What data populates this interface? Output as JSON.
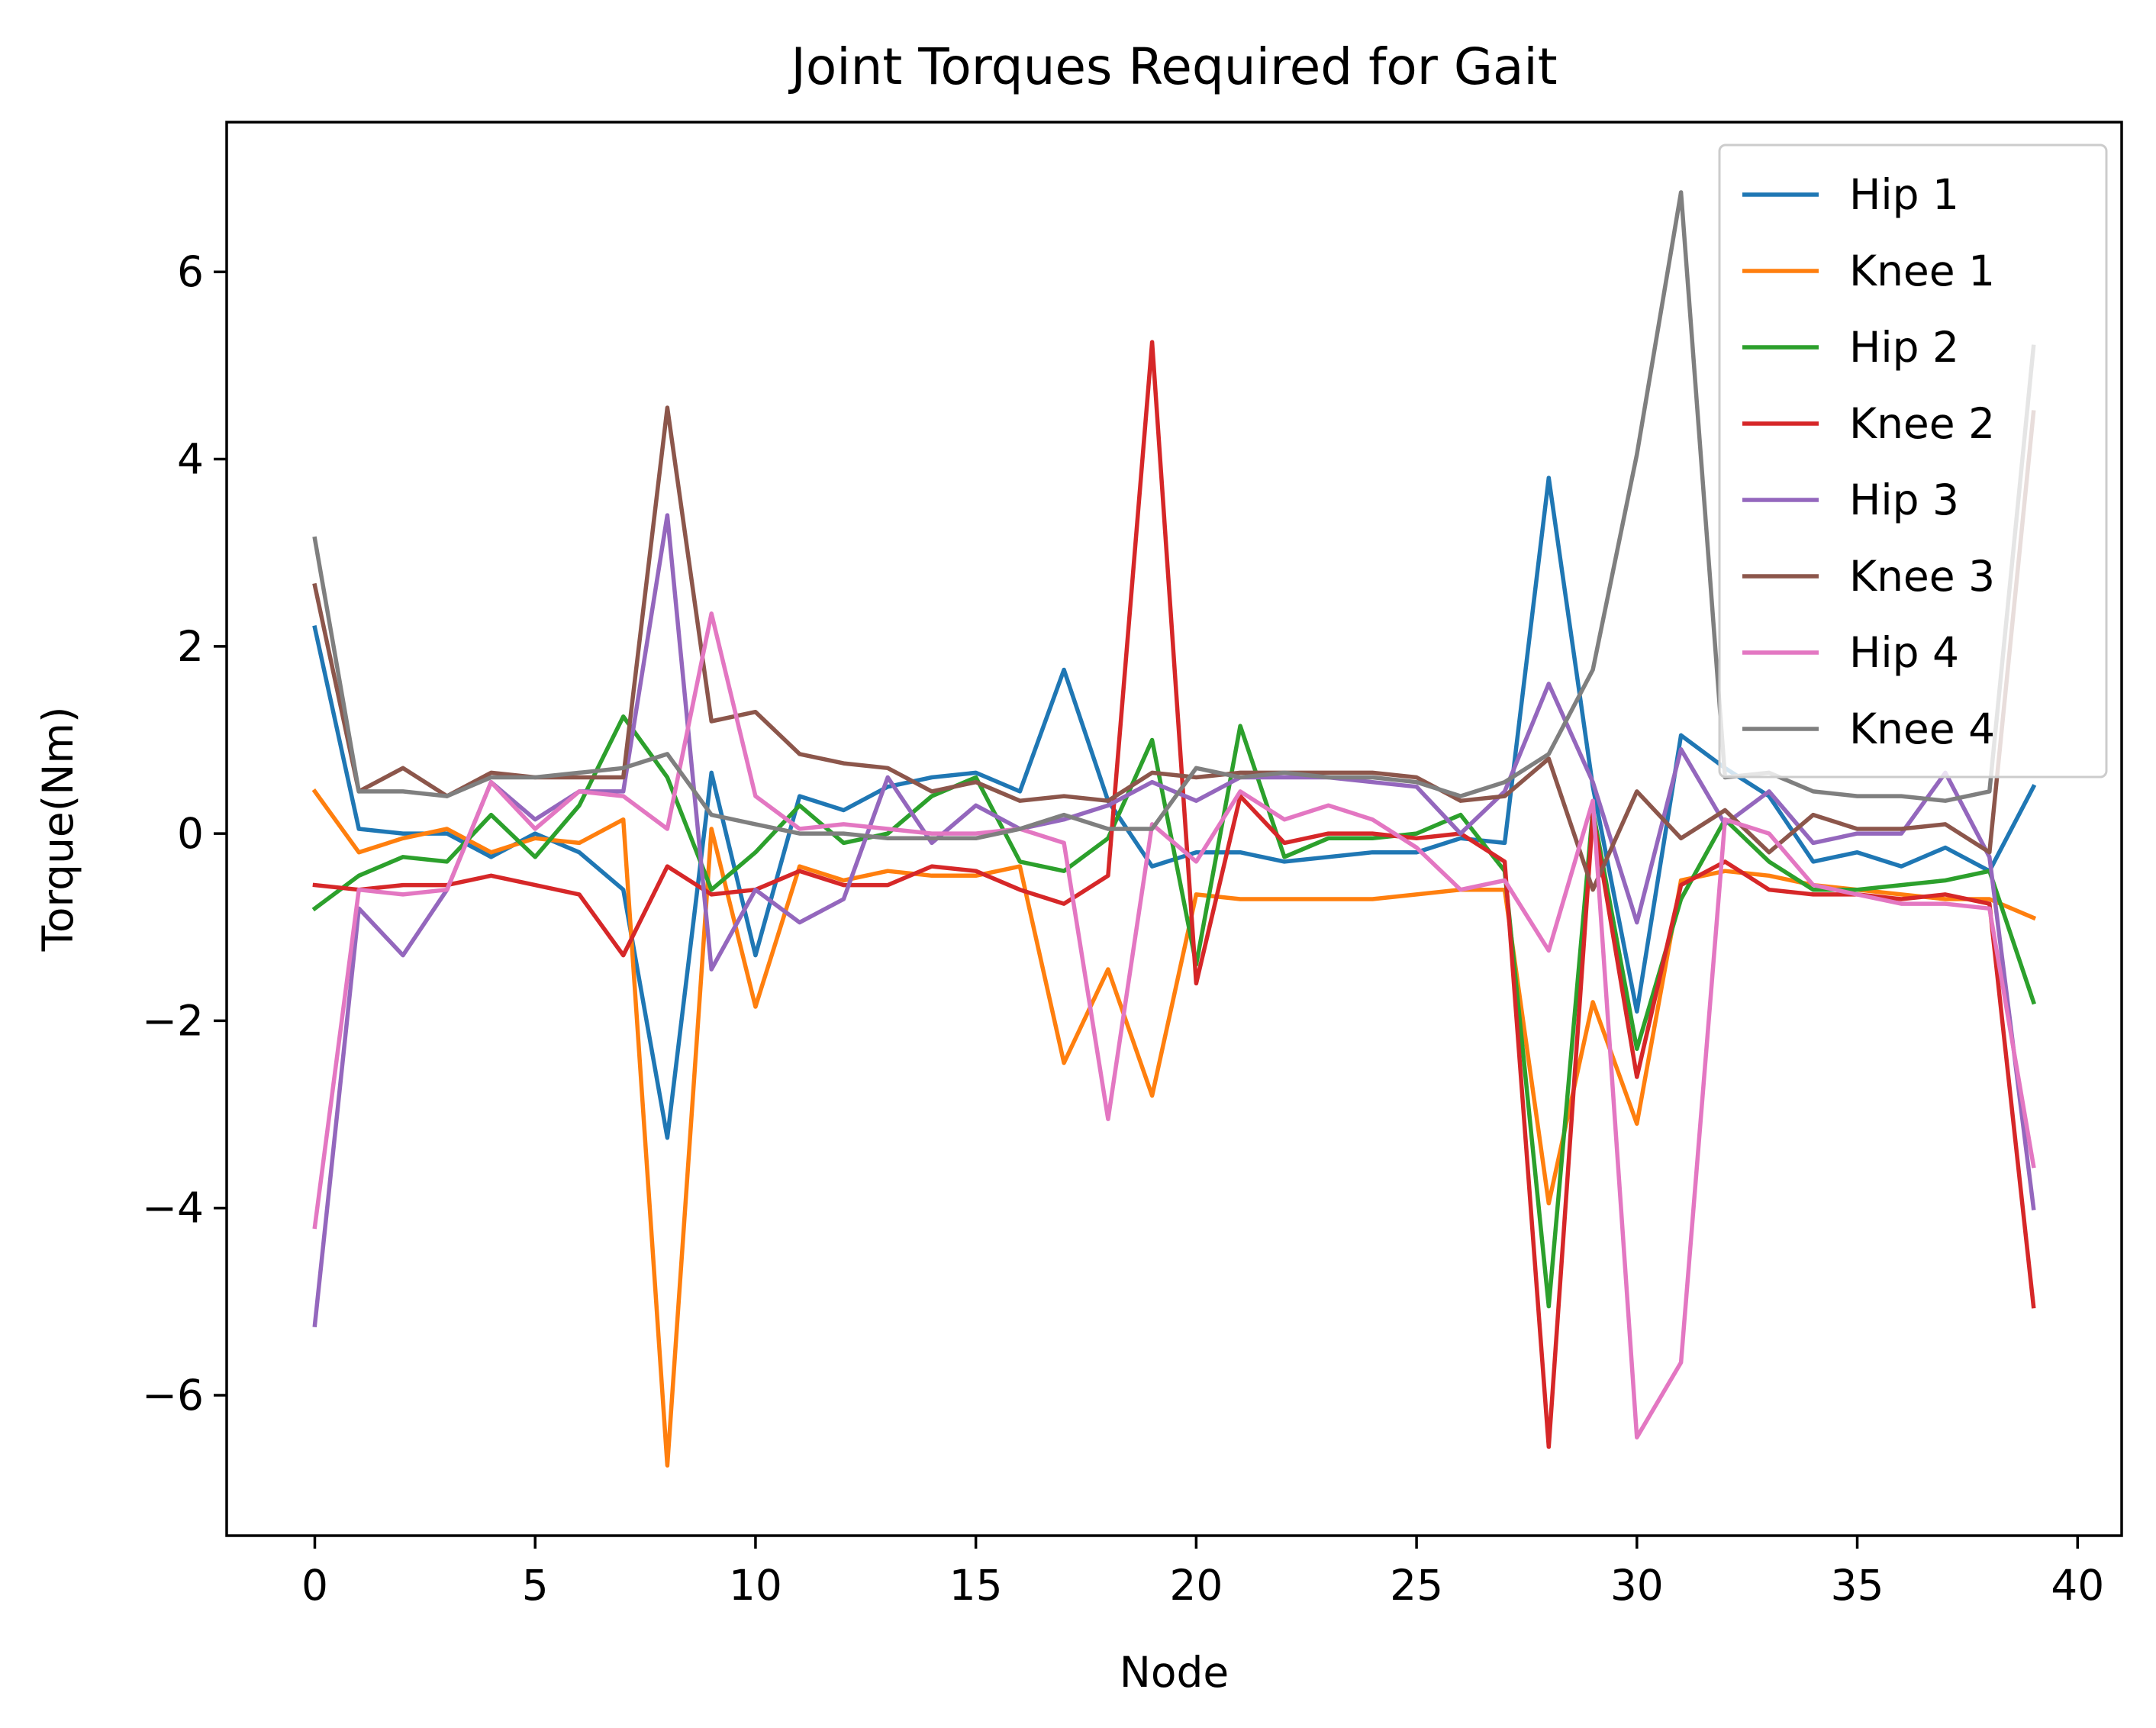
{
  "chart_data": {
    "type": "line",
    "title": "Joint Torques Required for Gait",
    "xlabel": "Node",
    "ylabel": "Torque(Nm)",
    "xlim": [
      -2,
      41
    ],
    "ylim": [
      -7.5,
      7.6
    ],
    "xticks": [
      0,
      5,
      10,
      15,
      20,
      25,
      30,
      35,
      40
    ],
    "yticks": [
      -6,
      -4,
      -2,
      0,
      2,
      4,
      6
    ],
    "grid": false,
    "legend_position": "upper right",
    "x": [
      0,
      1,
      2,
      3,
      4,
      5,
      6,
      7,
      8,
      9,
      10,
      11,
      12,
      13,
      14,
      15,
      16,
      17,
      18,
      19,
      20,
      21,
      22,
      23,
      24,
      25,
      26,
      27,
      28,
      29,
      30,
      31,
      32,
      33,
      34,
      35,
      36,
      37,
      38,
      39
    ],
    "series": [
      {
        "name": "Hip 1",
        "color": "#1f77b4",
        "values": [
          2.2,
          0.05,
          0.0,
          0.0,
          -0.25,
          0.0,
          -0.2,
          -0.6,
          -3.25,
          0.65,
          -1.3,
          0.4,
          0.25,
          0.5,
          0.6,
          0.65,
          0.45,
          1.75,
          0.35,
          -0.35,
          -0.2,
          -0.2,
          -0.3,
          -0.25,
          -0.2,
          -0.2,
          -0.05,
          -0.1,
          3.8,
          0.5,
          -1.9,
          1.05,
          0.7,
          0.4,
          -0.3,
          -0.2,
          -0.35,
          -0.15,
          -0.4,
          0.5
        ]
      },
      {
        "name": "Knee 1",
        "color": "#ff7f0e",
        "values": [
          0.45,
          -0.2,
          -0.05,
          0.05,
          -0.2,
          -0.05,
          -0.1,
          0.15,
          -6.75,
          0.05,
          -1.85,
          -0.35,
          -0.5,
          -0.4,
          -0.45,
          -0.45,
          -0.35,
          -2.45,
          -1.45,
          -2.8,
          -0.65,
          -0.7,
          -0.7,
          -0.7,
          -0.7,
          -0.65,
          -0.6,
          -0.6,
          -3.95,
          -1.8,
          -3.1,
          -0.5,
          -0.4,
          -0.45,
          -0.55,
          -0.6,
          -0.65,
          -0.7,
          -0.7,
          -0.9
        ]
      },
      {
        "name": "Hip 2",
        "color": "#2ca02c",
        "values": [
          -0.8,
          -0.45,
          -0.25,
          -0.3,
          0.2,
          -0.25,
          0.3,
          1.25,
          0.6,
          -0.6,
          -0.2,
          0.3,
          -0.1,
          0.0,
          0.4,
          0.6,
          -0.3,
          -0.4,
          -0.05,
          1.0,
          -1.4,
          1.15,
          -0.25,
          -0.05,
          -0.05,
          0.0,
          0.2,
          -0.4,
          -5.05,
          0.25,
          -2.3,
          -0.7,
          0.15,
          -0.3,
          -0.6,
          -0.6,
          -0.55,
          -0.5,
          -0.4,
          -1.8
        ]
      },
      {
        "name": "Knee 2",
        "color": "#d62728",
        "values": [
          -0.55,
          -0.6,
          -0.55,
          -0.55,
          -0.45,
          -0.55,
          -0.65,
          -1.3,
          -0.35,
          -0.65,
          -0.6,
          -0.4,
          -0.55,
          -0.55,
          -0.35,
          -0.4,
          -0.6,
          -0.75,
          -0.45,
          5.25,
          -1.6,
          0.4,
          -0.1,
          0.0,
          0.0,
          -0.05,
          0.0,
          -0.3,
          -6.55,
          0.2,
          -2.6,
          -0.55,
          -0.3,
          -0.6,
          -0.65,
          -0.65,
          -0.7,
          -0.65,
          -0.75,
          -5.05
        ]
      },
      {
        "name": "Hip 3",
        "color": "#9467bd",
        "values": [
          -5.25,
          -0.8,
          -1.3,
          -0.6,
          0.55,
          0.15,
          0.45,
          0.45,
          3.4,
          -1.45,
          -0.6,
          -0.95,
          -0.7,
          0.6,
          -0.1,
          0.3,
          0.05,
          0.15,
          0.3,
          0.55,
          0.35,
          0.6,
          0.6,
          0.6,
          0.55,
          0.5,
          0.0,
          0.45,
          1.6,
          0.55,
          -0.95,
          0.9,
          0.1,
          0.45,
          -0.1,
          0.0,
          0.0,
          0.65,
          -0.25,
          -4.0
        ]
      },
      {
        "name": "Knee 3",
        "color": "#8c564b",
        "values": [
          2.65,
          0.45,
          0.7,
          0.4,
          0.65,
          0.6,
          0.6,
          0.6,
          4.55,
          1.2,
          1.3,
          0.85,
          0.75,
          0.7,
          0.45,
          0.55,
          0.35,
          0.4,
          0.35,
          0.65,
          0.6,
          0.65,
          0.65,
          0.65,
          0.65,
          0.6,
          0.35,
          0.4,
          0.8,
          -0.6,
          0.45,
          -0.05,
          0.25,
          -0.2,
          0.2,
          0.05,
          0.05,
          0.1,
          -0.2,
          4.5
        ]
      },
      {
        "name": "Hip 4",
        "color": "#e377c2",
        "values": [
          -4.2,
          -0.6,
          -0.65,
          -0.6,
          0.55,
          0.05,
          0.45,
          0.4,
          0.05,
          2.35,
          0.4,
          0.05,
          0.1,
          0.05,
          0.0,
          0.0,
          0.05,
          -0.1,
          -3.05,
          0.1,
          -0.3,
          0.45,
          0.15,
          0.3,
          0.15,
          -0.15,
          -0.6,
          -0.5,
          -1.25,
          0.35,
          -6.45,
          -5.65,
          0.15,
          0.0,
          -0.55,
          -0.65,
          -0.75,
          -0.75,
          -0.8,
          -3.55
        ]
      },
      {
        "name": "Knee 4",
        "color": "#7f7f7f",
        "values": [
          3.15,
          0.45,
          0.45,
          0.4,
          0.6,
          0.6,
          0.65,
          0.7,
          0.85,
          0.2,
          0.1,
          0.0,
          0.0,
          -0.05,
          -0.05,
          -0.05,
          0.05,
          0.2,
          0.05,
          0.05,
          0.7,
          0.6,
          0.65,
          0.6,
          0.6,
          0.55,
          0.4,
          0.55,
          0.85,
          1.75,
          4.05,
          6.85,
          0.6,
          0.65,
          0.45,
          0.4,
          0.4,
          0.35,
          0.45,
          5.2
        ]
      }
    ]
  }
}
